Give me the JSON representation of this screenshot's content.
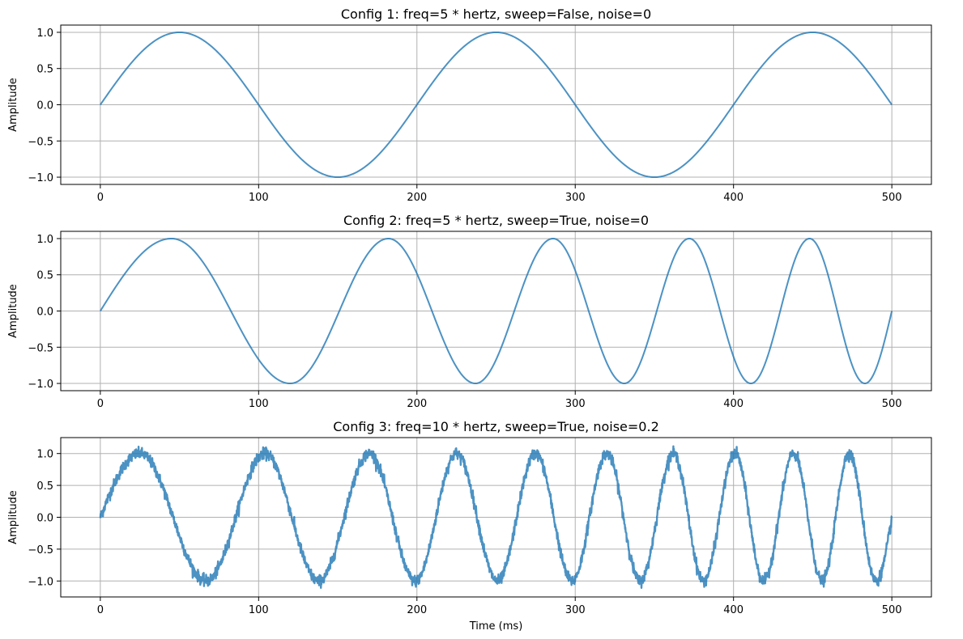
{
  "chart_data": [
    {
      "type": "line",
      "title": "Config 1: freq=5 * hertz, sweep=False, noise=0",
      "xlabel": "",
      "ylabel": "Amplitude",
      "xlim": [
        -25,
        525
      ],
      "ylim": [
        -1.1,
        1.1
      ],
      "xticks": [
        0,
        100,
        200,
        300,
        400,
        500
      ],
      "xtick_labels": [
        "0",
        "100",
        "200",
        "300",
        "400",
        "500"
      ],
      "yticks": [
        -1.0,
        -0.5,
        0.0,
        0.5,
        1.0
      ],
      "ytick_labels": [
        "−1.0",
        "−0.5",
        "0.0",
        "0.5",
        "1.0"
      ],
      "grid": true,
      "color": "#1f77b4",
      "series": [
        {
          "generator": "sine",
          "x_range": [
            0,
            500
          ],
          "freq_hz": 5,
          "sweep": false,
          "noise": 0,
          "extrema": [
            [
              50,
              1.0
            ],
            [
              150,
              -1.0
            ],
            [
              250,
              1.0
            ],
            [
              350,
              -1.0
            ],
            [
              450,
              1.0
            ]
          ],
          "end": [
            500,
            0.0
          ]
        }
      ]
    },
    {
      "type": "line",
      "title": "Config 2: freq=5 * hertz, sweep=True, noise=0",
      "xlabel": "",
      "ylabel": "Amplitude",
      "xlim": [
        -25,
        525
      ],
      "ylim": [
        -1.1,
        1.1
      ],
      "xticks": [
        0,
        100,
        200,
        300,
        400,
        500
      ],
      "xtick_labels": [
        "0",
        "100",
        "200",
        "300",
        "400",
        "500"
      ],
      "yticks": [
        -1.0,
        -0.5,
        0.0,
        0.5,
        1.0
      ],
      "ytick_labels": [
        "−1.0",
        "−0.5",
        "0.0",
        "0.5",
        "1.0"
      ],
      "grid": true,
      "color": "#1f77b4",
      "series": [
        {
          "generator": "sine",
          "x_range": [
            0,
            500
          ],
          "freq_hz": 5,
          "sweep": true,
          "noise": 0,
          "extrema": [
            [
              45,
              1.0
            ],
            [
              120,
              -1.0
            ],
            [
              182,
              1.0
            ],
            [
              237,
              -1.0
            ],
            [
              286,
              1.0
            ],
            [
              331,
              -1.0
            ],
            [
              372,
              1.0
            ],
            [
              411,
              -1.0
            ],
            [
              448,
              1.0
            ],
            [
              483,
              -1.0
            ]
          ],
          "end": [
            500,
            0.0
          ]
        }
      ]
    },
    {
      "type": "line",
      "title": "Config 3: freq=10 * hertz, sweep=True, noise=0.2",
      "xlabel": "Time (ms)",
      "ylabel": "Amplitude",
      "xlim": [
        -25,
        525
      ],
      "ylim": [
        -1.25,
        1.25
      ],
      "xticks": [
        0,
        100,
        200,
        300,
        400,
        500
      ],
      "xtick_labels": [
        "0",
        "100",
        "200",
        "300",
        "400",
        "500"
      ],
      "yticks": [
        -1.0,
        -0.5,
        0.0,
        0.5,
        1.0
      ],
      "ytick_labels": [
        "−1.0",
        "−0.5",
        "0.0",
        "0.5",
        "1.0"
      ],
      "grid": true,
      "color": "#1f77b4",
      "series": [
        {
          "generator": "sine",
          "x_range": [
            0,
            500
          ],
          "freq_hz": 10,
          "sweep": true,
          "noise": 0.2,
          "extrema": [
            [
              25,
              1.0
            ],
            [
              67,
              -1.0
            ],
            [
              104,
              1.0
            ],
            [
              138,
              -1.0
            ],
            [
              170,
              1.0
            ],
            [
              199,
              -1.0
            ],
            [
              225,
              1.0
            ],
            [
              251,
              -1.0
            ],
            [
              275,
              1.0
            ],
            [
              298,
              -1.0
            ],
            [
              320,
              1.0
            ],
            [
              341,
              -1.0
            ],
            [
              362,
              1.0
            ],
            [
              381,
              -1.0
            ],
            [
              401,
              1.0
            ],
            [
              419,
              -1.0
            ],
            [
              438,
              1.0
            ],
            [
              456,
              -1.0
            ],
            [
              473,
              1.0
            ],
            [
              490,
              -1.0
            ]
          ],
          "end": [
            500,
            0.0
          ]
        }
      ]
    }
  ]
}
